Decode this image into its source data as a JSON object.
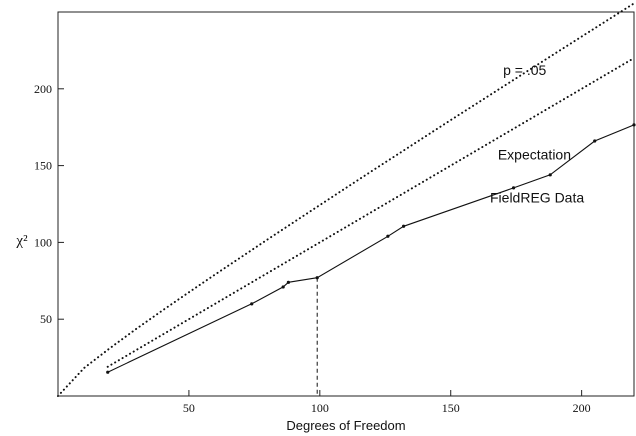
{
  "chart_data": {
    "type": "line",
    "xlabel": "Degrees of Freedom",
    "ylabel": "χ²",
    "xlim": [
      0,
      220
    ],
    "ylim": [
      0,
      250
    ],
    "xticks": [
      50,
      100,
      150,
      200
    ],
    "yticks": [
      50,
      100,
      150,
      200
    ],
    "series": [
      {
        "name": "p = .05",
        "style": "dotted",
        "x": [
          0,
          10,
          20,
          30,
          40,
          50,
          60,
          70,
          80,
          90,
          100,
          110,
          120,
          130,
          140,
          150,
          160,
          170,
          180,
          190,
          200,
          210,
          220
        ],
        "y": [
          0,
          18.3,
          31.4,
          43.8,
          55.8,
          67.5,
          79.1,
          90.5,
          101.9,
          113.1,
          124.3,
          135.5,
          146.6,
          157.6,
          168.6,
          179.6,
          190.5,
          201.4,
          212.3,
          223.2,
          234.0,
          244.8,
          255.6
        ]
      },
      {
        "name": "Expectation",
        "style": "dotted",
        "x": [
          19,
          220
        ],
        "y": [
          19,
          220
        ]
      },
      {
        "name": "FieldREG Data",
        "style": "solid",
        "x": [
          19,
          74,
          86,
          88,
          99,
          126,
          132,
          174,
          188,
          205,
          220
        ],
        "y": [
          15.5,
          60,
          71,
          74,
          77,
          104,
          110.5,
          135.5,
          144,
          166,
          176.5
        ]
      }
    ],
    "annotations": [
      {
        "text": "p = .05",
        "x": 170,
        "y": 209
      },
      {
        "text": "Expectation",
        "x": 168,
        "y": 154
      },
      {
        "text": "FieldREG Data",
        "x": 165,
        "y": 126
      }
    ],
    "reference_line": {
      "style": "dashed",
      "x": 99,
      "y_from": 0,
      "y_to": 77
    }
  }
}
